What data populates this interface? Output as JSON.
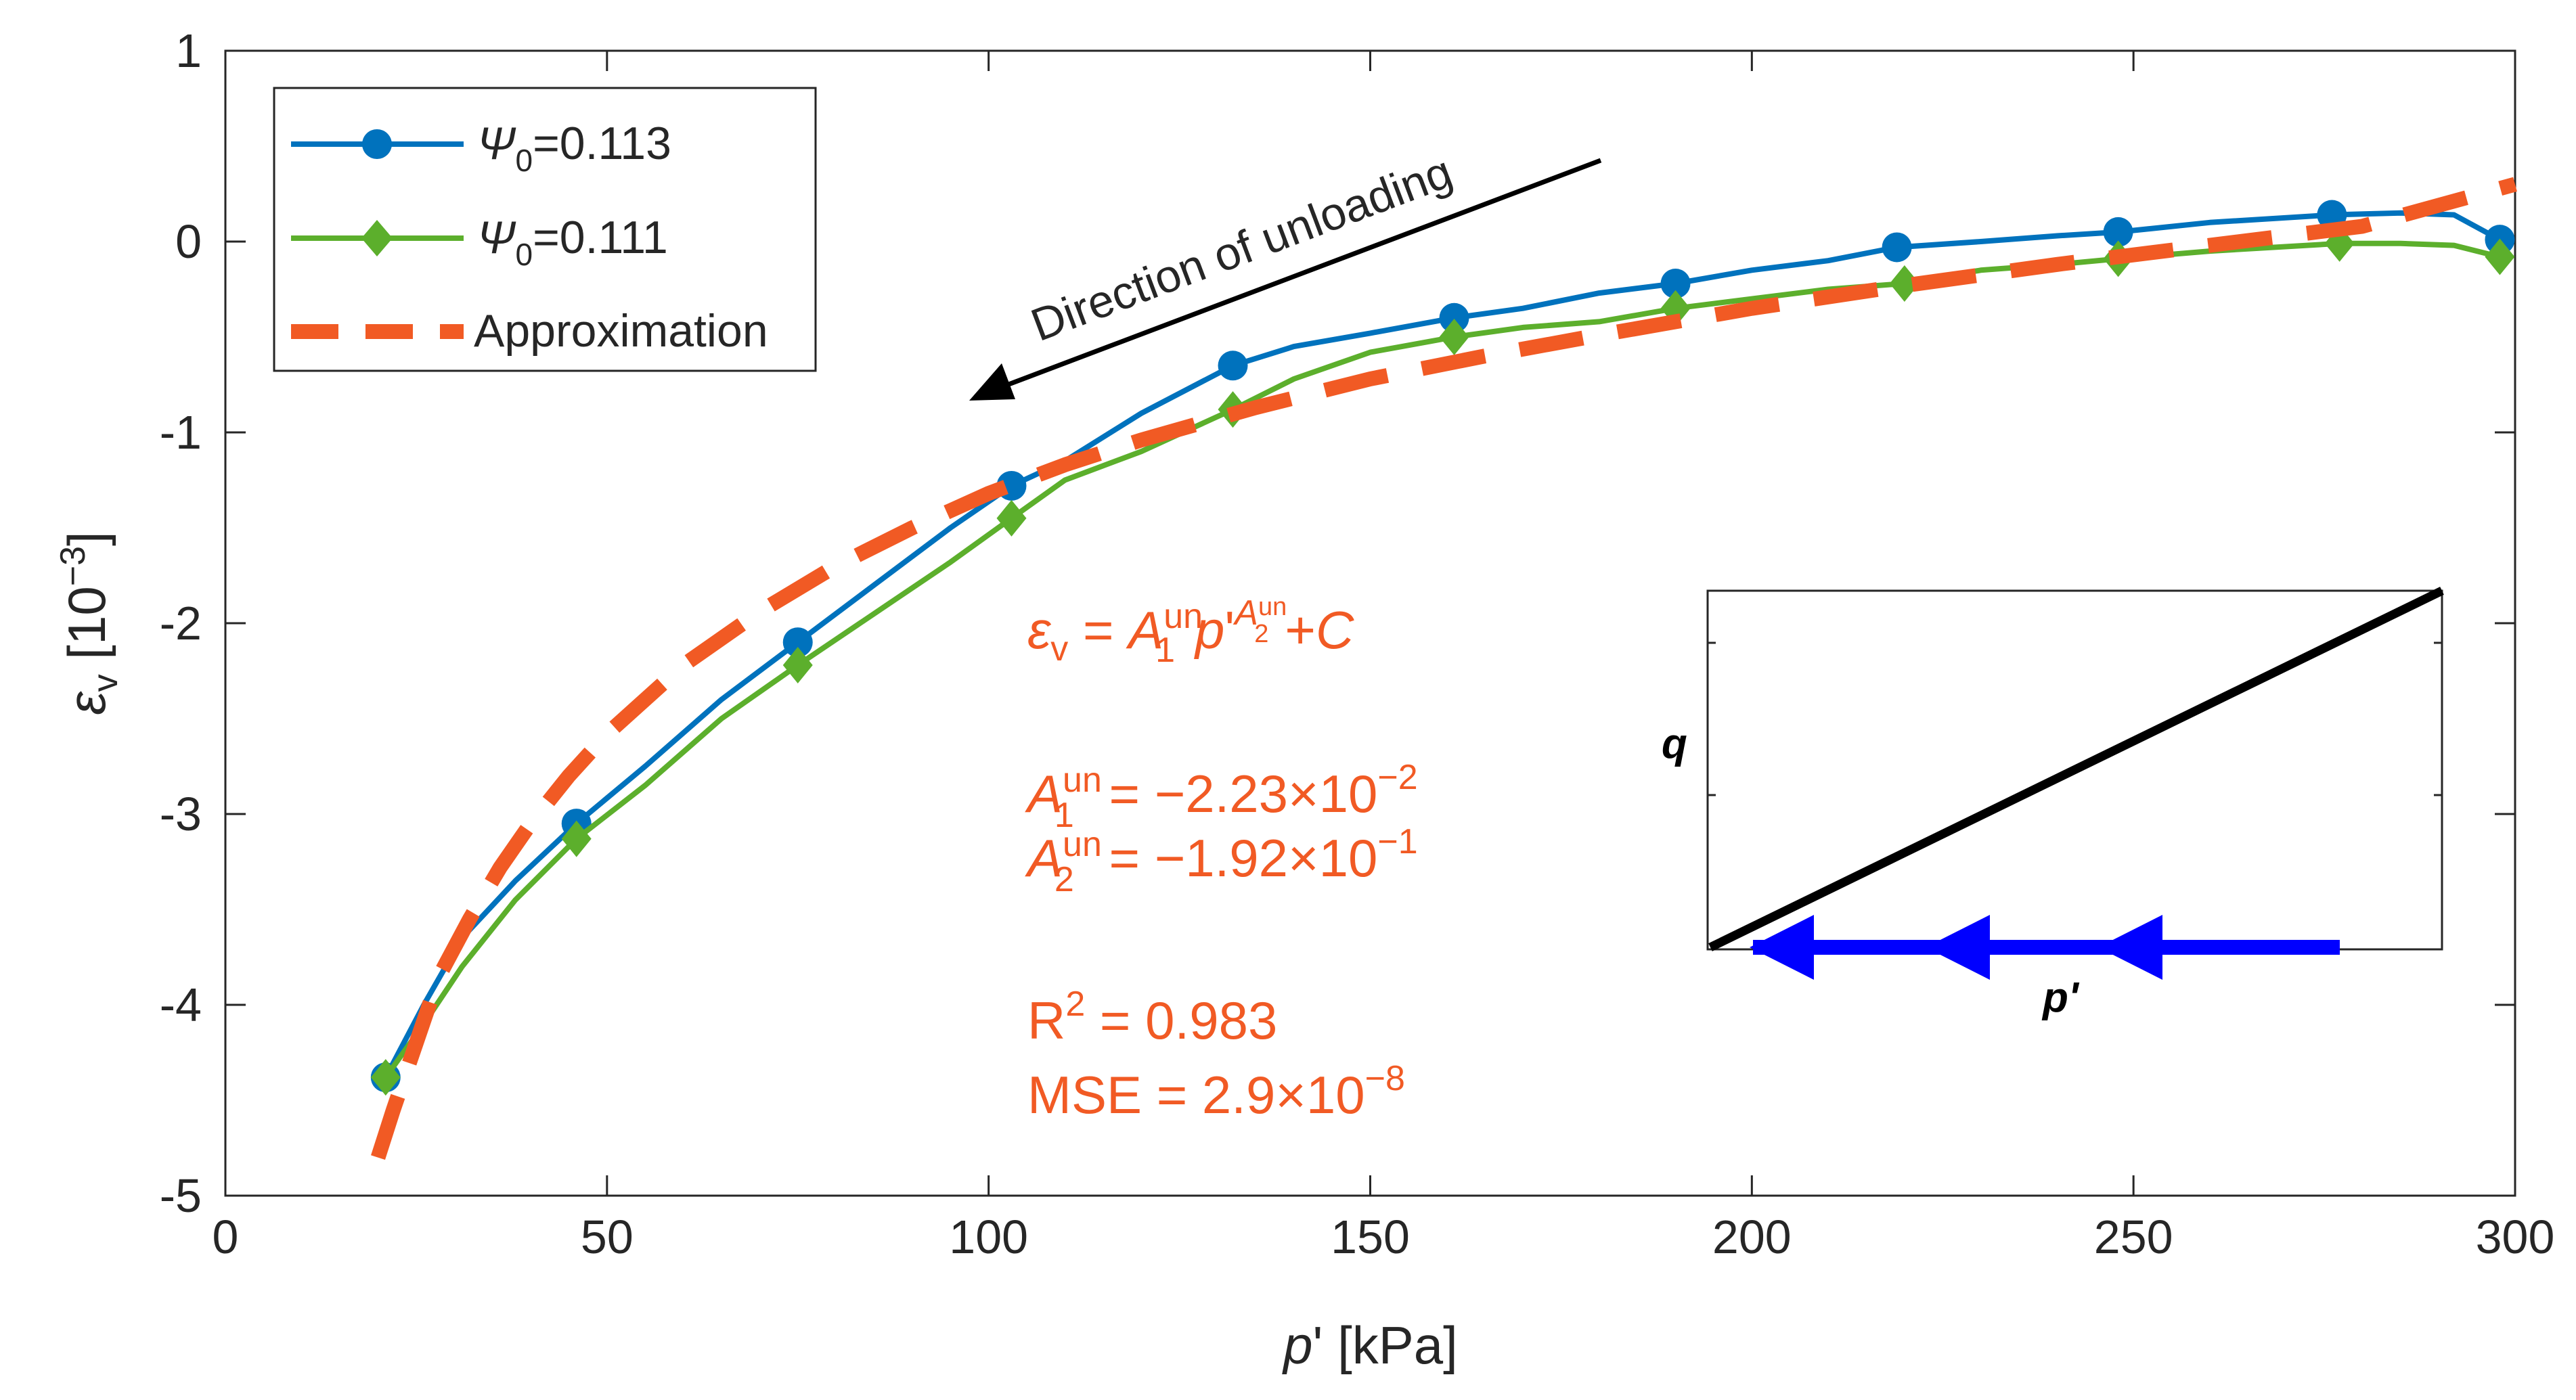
{
  "chart_data": {
    "type": "line",
    "title": "",
    "xlabel": "p' [kPa]",
    "ylabel": "εv [10⁻³]",
    "xlim": [
      0,
      300
    ],
    "ylim": [
      -5,
      1
    ],
    "xticks": [
      0,
      50,
      100,
      150,
      200,
      250,
      300
    ],
    "yticks": [
      -5,
      -4,
      -3,
      -2,
      -1,
      0,
      1
    ],
    "xtick_labels": [
      "0",
      "50",
      "100",
      "150",
      "200",
      "250",
      "300"
    ],
    "ytick_labels": [
      "-5",
      "-4",
      "-3",
      "-2",
      "-1",
      "0",
      "1"
    ],
    "grid": false,
    "legend_position": "top-left",
    "series": [
      {
        "name": "Ψ0=0.113",
        "legend_symbol": "Ψ",
        "legend_sub": "0",
        "legend_value": "=0.113",
        "color": "#0072BD",
        "marker": "circle",
        "x": [
          21,
          26,
          31,
          38,
          46,
          55,
          65,
          75,
          85,
          95,
          103,
          110,
          120,
          132,
          140,
          150,
          161,
          170,
          180,
          190,
          200,
          210,
          219,
          230,
          240,
          248,
          260,
          276,
          285,
          292,
          298
        ],
        "y": [
          -4.38,
          -4.0,
          -3.65,
          -3.35,
          -3.05,
          -2.75,
          -2.4,
          -2.1,
          -1.8,
          -1.5,
          -1.28,
          -1.15,
          -0.9,
          -0.65,
          -0.55,
          -0.48,
          -0.4,
          -0.35,
          -0.27,
          -0.22,
          -0.15,
          -0.1,
          -0.03,
          0.0,
          0.03,
          0.05,
          0.1,
          0.14,
          0.15,
          0.14,
          0.01
        ],
        "marker_x": [
          21,
          46,
          75,
          103,
          132,
          161,
          190,
          219,
          248,
          276,
          298
        ],
        "marker_y": [
          -4.38,
          -3.05,
          -2.1,
          -1.28,
          -0.65,
          -0.4,
          -0.22,
          -0.03,
          0.05,
          0.14,
          0.01
        ]
      },
      {
        "name": "Ψ0=0.111",
        "legend_symbol": "Ψ",
        "legend_sub": "0",
        "legend_value": "=0.111",
        "color": "#5CAF2C",
        "marker": "diamond",
        "x": [
          21,
          26,
          31,
          38,
          46,
          55,
          65,
          75,
          85,
          95,
          103,
          110,
          120,
          132,
          140,
          150,
          161,
          170,
          180,
          190,
          200,
          210,
          220,
          230,
          240,
          248,
          260,
          277,
          285,
          292,
          298
        ],
        "y": [
          -4.38,
          -4.1,
          -3.8,
          -3.45,
          -3.13,
          -2.85,
          -2.5,
          -2.22,
          -1.95,
          -1.68,
          -1.45,
          -1.25,
          -1.1,
          -0.88,
          -0.72,
          -0.58,
          -0.5,
          -0.45,
          -0.42,
          -0.35,
          -0.3,
          -0.25,
          -0.22,
          -0.15,
          -0.12,
          -0.09,
          -0.05,
          -0.01,
          -0.01,
          -0.02,
          -0.08
        ],
        "marker_x": [
          21,
          46,
          75,
          103,
          132,
          161,
          190,
          220,
          248,
          277,
          298
        ],
        "marker_y": [
          -4.38,
          -3.13,
          -2.22,
          -1.45,
          -0.88,
          -0.5,
          -0.35,
          -0.22,
          -0.09,
          -0.01,
          -0.08
        ]
      },
      {
        "name": "Approximation",
        "color": "#F15A24",
        "style": "dashed",
        "x": [
          20,
          22,
          25,
          28,
          32,
          36,
          40,
          45,
          50,
          55,
          60,
          70,
          80,
          90,
          100,
          110,
          120,
          135,
          150,
          165,
          180,
          200,
          220,
          240,
          260,
          280,
          300
        ],
        "y": [
          -4.8,
          -4.55,
          -4.2,
          -3.85,
          -3.55,
          -3.28,
          -3.05,
          -2.8,
          -2.58,
          -2.4,
          -2.22,
          -1.94,
          -1.7,
          -1.5,
          -1.32,
          -1.17,
          -1.04,
          -0.87,
          -0.72,
          -0.6,
          -0.49,
          -0.35,
          -0.23,
          -0.12,
          -0.02,
          0.08,
          0.3
        ]
      }
    ],
    "annotations": {
      "direction_text": "Direction of unloading",
      "direction_arrow": {
        "from": [
          180,
          0.4
        ],
        "to": [
          97,
          -0.85
        ]
      },
      "formula": {
        "lhs": "ε",
        "lhs_sub": "v",
        "eq": " = ",
        "a1": "A",
        "a1_sub": "1",
        "a1_sup": "un",
        "p": "p'",
        "a2": "A",
        "a2_sub": "2",
        "a2_sup": "un",
        "tail": "+C"
      },
      "a1_line": {
        "sym": "A",
        "sub": "1",
        "sup": "un",
        "text": " = −2.23×10",
        "exp": "−2"
      },
      "a2_line": {
        "sym": "A",
        "sub": "2",
        "sup": "un",
        "text": " = −1.92×10",
        "exp": "−1"
      },
      "r2_line": {
        "text": "R",
        "sup": "2",
        "rest": " = 0.983"
      },
      "mse_line": {
        "text": "MSE = 2.9×10",
        "exp": "−8"
      },
      "text_color": "#F15A24"
    },
    "inset": {
      "ylabel": "q",
      "xlabel": "p'",
      "line_color": "#000000",
      "arrow_color": "#0000FF",
      "arrow_count": 3
    }
  }
}
